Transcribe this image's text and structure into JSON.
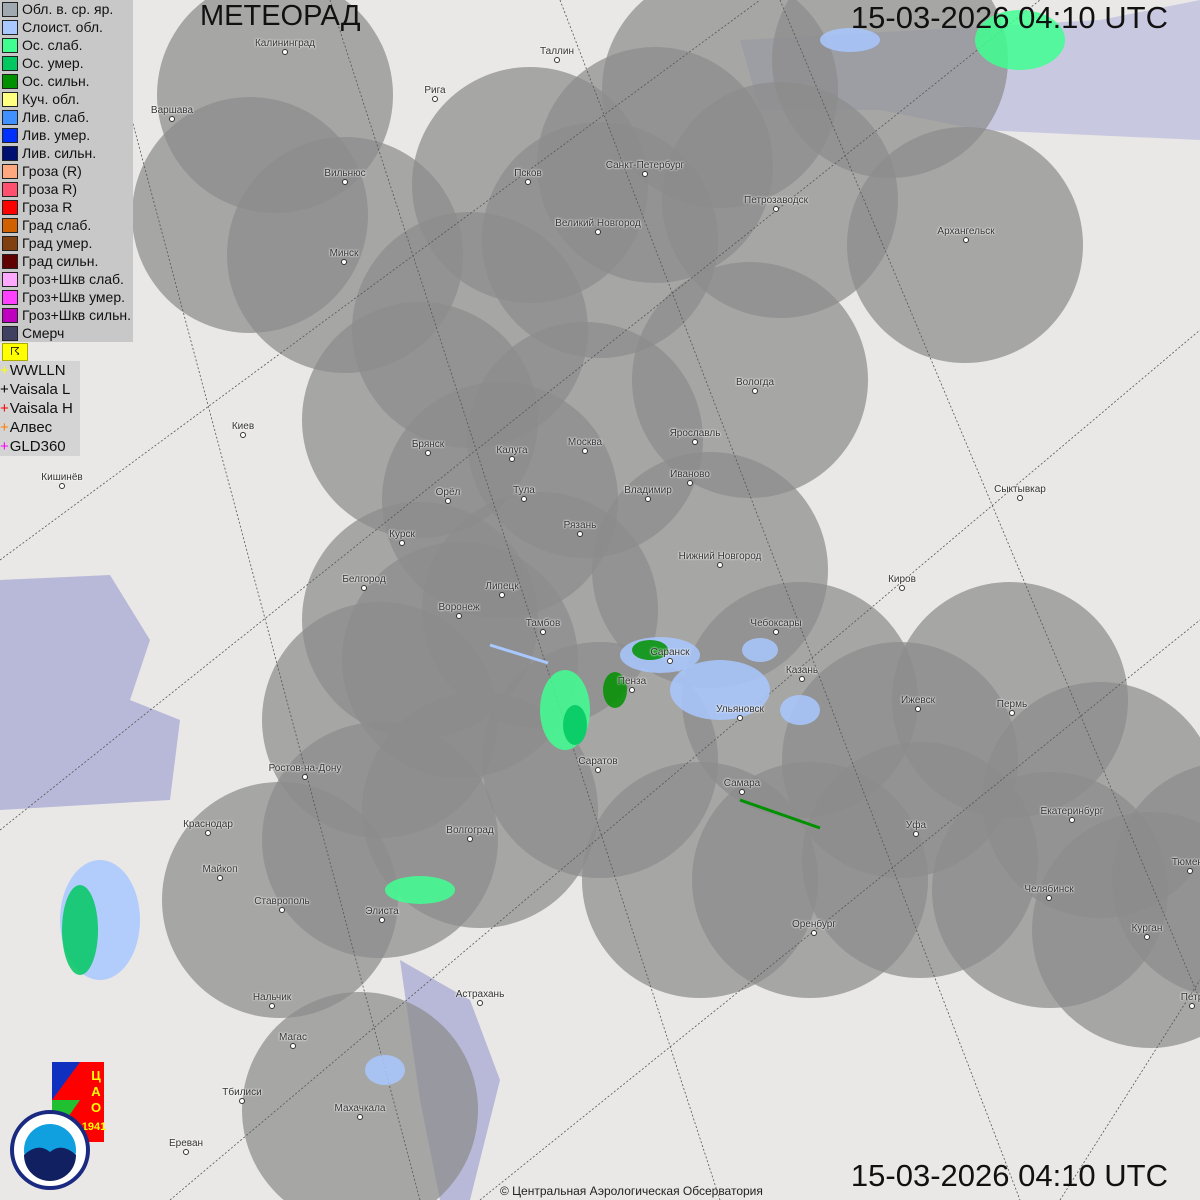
{
  "title": "МЕТЕОРАД",
  "timestamp": "15-03-2026  04:10 UTC",
  "copyright": "© Центральная Аэрологическая Обсерватория",
  "logos": {
    "cao": "ЦАО 1941",
    "roshydromet": "РОСГИДРОМЕТ ROSHYDROMET"
  },
  "legend": [
    {
      "label": "Обл. в. ср. яр.",
      "color": "#a0a8b0"
    },
    {
      "label": "Слоист. обл.",
      "color": "#a8c8ff"
    },
    {
      "label": "Ос. слаб.",
      "color": "#40ff90"
    },
    {
      "label": "Ос. умер.",
      "color": "#00c860"
    },
    {
      "label": "Ос. сильн.",
      "color": "#009000"
    },
    {
      "label": "Куч. обл.",
      "color": "#ffff80"
    },
    {
      "label": "Лив. слаб.",
      "color": "#4090ff"
    },
    {
      "label": "Лив. умер.",
      "color": "#0030ff"
    },
    {
      "label": "Лив. сильн.",
      "color": "#001070"
    },
    {
      "label": "Гроза (R)",
      "color": "#ffa880"
    },
    {
      "label": "Гроза R)",
      "color": "#ff5070"
    },
    {
      "label": "Гроза R",
      "color": "#ff0000"
    },
    {
      "label": "Град слаб.",
      "color": "#d06000"
    },
    {
      "label": "Град умер.",
      "color": "#804010"
    },
    {
      "label": "Град сильн.",
      "color": "#600000"
    },
    {
      "label": "Гроз+Шкв слаб.",
      "color": "#ffa8ff"
    },
    {
      "label": "Гроз+Шкв умер.",
      "color": "#ff40ff"
    },
    {
      "label": "Гроз+Шкв сильн.",
      "color": "#c000c0"
    },
    {
      "label": "Смерч",
      "color": "#404060"
    }
  ],
  "lightning_toggle": "☈",
  "lightning": [
    {
      "label": "WWLLN",
      "color": "#ffff00"
    },
    {
      "label": "Vaisala L",
      "color": "#000000"
    },
    {
      "label": "Vaisala H",
      "color": "#ff0000"
    },
    {
      "label": "Алвес",
      "color": "#ff8000"
    },
    {
      "label": "GLD360",
      "color": "#ff00ff"
    }
  ],
  "cities": [
    "Калининград",
    "Таллин",
    "Рига",
    "Варшава",
    "Вильнюс",
    "Псков",
    "Санкт-Петербург",
    "Петрозаводск",
    "Архангельск",
    "Великий Новгород",
    "Минск",
    "Вологда",
    "Киев",
    "Брянск",
    "Калуга",
    "Москва",
    "Ярославль",
    "Иваново",
    "Кишинёв",
    "Орёл",
    "Тула",
    "Владимир",
    "Сыктывкар",
    "Рязань",
    "Курск",
    "Нижний Новгород",
    "Белгород",
    "Липецк",
    "Киров",
    "Воронеж",
    "Тамбов",
    "Чебоксары",
    "Саранск",
    "Казань",
    "Пенза",
    "Ижевск",
    "Пермь",
    "Ульяновск",
    "Саратов",
    "Ростов-на-Дону",
    "Самара",
    "Краснодар",
    "Екатеринбург",
    "Волгоград",
    "Уфа",
    "Тюмень",
    "Майкоп",
    "Челябинск",
    "Ставрополь",
    "Элиста",
    "Оренбург",
    "Курган",
    "Астрахань",
    "Нальчик",
    "Петр",
    "Магас",
    "Тбилиси",
    "Махачкала",
    "Ереван"
  ]
}
